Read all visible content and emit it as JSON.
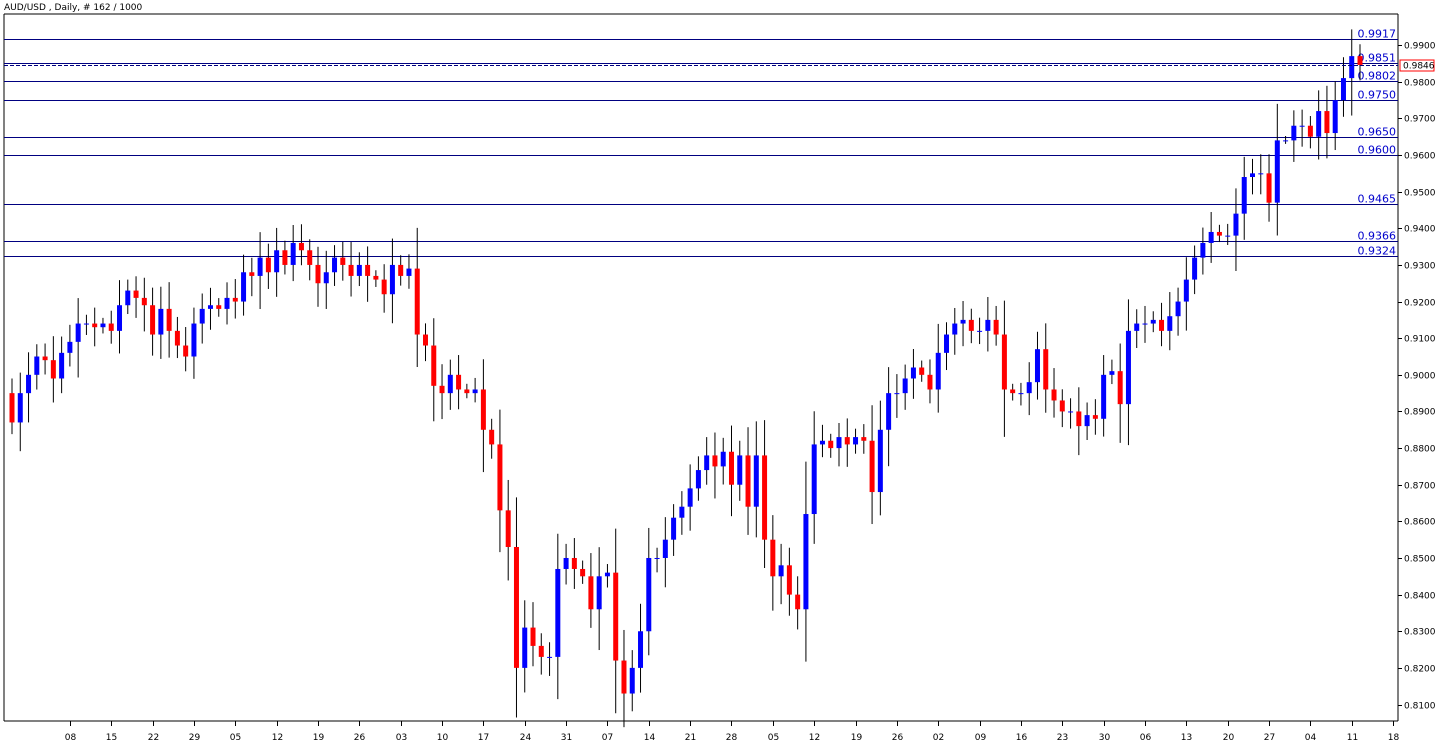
{
  "header": {
    "title": "AUD/USD , Daily, # 162 / 1000"
  },
  "colors": {
    "bull": "#0000ff",
    "bear": "#ff0000",
    "wick": "#000000",
    "level": "#000080",
    "level_text": "#0000cc",
    "current_box": "#ff0000"
  },
  "chart_data": {
    "type": "candlestick",
    "symbol": "AUD/USD",
    "timeframe": "Daily",
    "ylim": [
      0.8055,
      0.9985
    ],
    "y_ticks": [
      "0.9900",
      "0.9800",
      "0.9700",
      "0.9600",
      "0.9500",
      "0.9400",
      "0.9300",
      "0.9200",
      "0.9100",
      "0.9000",
      "0.8900",
      "0.8800",
      "0.8700",
      "0.8600",
      "0.8500",
      "0.8400",
      "0.8300",
      "0.8200",
      "0.8100"
    ],
    "x_ticks": [
      {
        "label": "08",
        "bar": 7
      },
      {
        "label": "15",
        "bar": 12
      },
      {
        "label": "22",
        "bar": 17
      },
      {
        "label": "29",
        "bar": 22
      },
      {
        "label": "05",
        "bar": 27
      },
      {
        "label": "12",
        "bar": 32
      },
      {
        "label": "19",
        "bar": 37
      },
      {
        "label": "26",
        "bar": 42
      },
      {
        "label": "03",
        "bar": 47
      },
      {
        "label": "10",
        "bar": 52
      },
      {
        "label": "17",
        "bar": 57
      },
      {
        "label": "24",
        "bar": 62
      },
      {
        "label": "31",
        "bar": 67
      },
      {
        "label": "07",
        "bar": 72
      },
      {
        "label": "14",
        "bar": 77
      },
      {
        "label": "21",
        "bar": 82
      },
      {
        "label": "28",
        "bar": 87
      },
      {
        "label": "05",
        "bar": 92
      },
      {
        "label": "12",
        "bar": 97
      },
      {
        "label": "19",
        "bar": 102
      },
      {
        "label": "26",
        "bar": 107
      },
      {
        "label": "02",
        "bar": 112
      },
      {
        "label": "09",
        "bar": 117
      },
      {
        "label": "16",
        "bar": 122
      },
      {
        "label": "23",
        "bar": 127
      },
      {
        "label": "30",
        "bar": 132
      },
      {
        "label": "06",
        "bar": 137
      },
      {
        "label": "13",
        "bar": 142
      },
      {
        "label": "20",
        "bar": 147
      },
      {
        "label": "27",
        "bar": 152
      },
      {
        "label": "04",
        "bar": 157
      },
      {
        "label": "11",
        "bar": 162
      },
      {
        "label": "18",
        "bar": 167
      }
    ],
    "levels": [
      {
        "value": 0.9917,
        "label": "0.9917"
      },
      {
        "value": 0.9851,
        "label": "0.9851"
      },
      {
        "value": 0.9802,
        "label": "0.9802"
      },
      {
        "value": 0.975,
        "label": "0.9750"
      },
      {
        "value": 0.965,
        "label": "0.9650"
      },
      {
        "value": 0.96,
        "label": "0.9600"
      },
      {
        "value": 0.9465,
        "label": "0.9465"
      },
      {
        "value": 0.9366,
        "label": "0.9366"
      },
      {
        "value": 0.9324,
        "label": "0.9324"
      }
    ],
    "current_price": {
      "value": 0.9846,
      "label": "0.9846"
    },
    "closes": [
      0.887,
      0.895,
      0.9,
      0.905,
      0.904,
      0.899,
      0.906,
      0.909,
      0.914,
      0.914,
      0.913,
      0.914,
      0.912,
      0.919,
      0.923,
      0.921,
      0.919,
      0.911,
      0.918,
      0.912,
      0.908,
      0.905,
      0.914,
      0.918,
      0.919,
      0.918,
      0.921,
      0.92,
      0.928,
      0.927,
      0.932,
      0.928,
      0.934,
      0.93,
      0.936,
      0.934,
      0.93,
      0.925,
      0.928,
      0.932,
      0.93,
      0.927,
      0.93,
      0.927,
      0.926,
      0.922,
      0.93,
      0.927,
      0.929,
      0.911,
      0.908,
      0.897,
      0.895,
      0.9,
      0.896,
      0.895,
      0.896,
      0.885,
      0.881,
      0.863,
      0.853,
      0.82,
      0.831,
      0.826,
      0.823,
      0.823,
      0.847,
      0.85,
      0.847,
      0.845,
      0.836,
      0.845,
      0.846,
      0.822,
      0.813,
      0.82,
      0.83,
      0.85,
      0.85,
      0.855,
      0.861,
      0.864,
      0.869,
      0.874,
      0.878,
      0.875,
      0.879,
      0.87,
      0.878,
      0.864,
      0.878,
      0.855,
      0.845,
      0.848,
      0.84,
      0.836,
      0.862,
      0.881,
      0.882,
      0.88,
      0.883,
      0.881,
      0.883,
      0.882,
      0.868,
      0.885,
      0.895,
      0.895,
      0.899,
      0.902,
      0.9,
      0.896,
      0.906,
      0.911,
      0.914,
      0.915,
      0.912,
      0.912,
      0.915,
      0.911,
      0.896,
      0.895,
      0.895,
      0.898,
      0.907,
      0.896,
      0.893,
      0.89,
      0.89,
      0.886,
      0.889,
      0.888,
      0.9,
      0.901,
      0.892,
      0.912,
      0.914,
      0.914,
      0.915,
      0.912,
      0.916,
      0.92,
      0.926,
      0.932,
      0.936,
      0.939,
      0.938,
      0.938,
      0.944,
      0.954,
      0.955,
      0.955,
      0.947,
      0.964,
      0.964,
      0.968,
      0.968,
      0.965,
      0.972,
      0.966,
      0.975,
      0.981,
      0.987,
      0.9846
    ]
  }
}
